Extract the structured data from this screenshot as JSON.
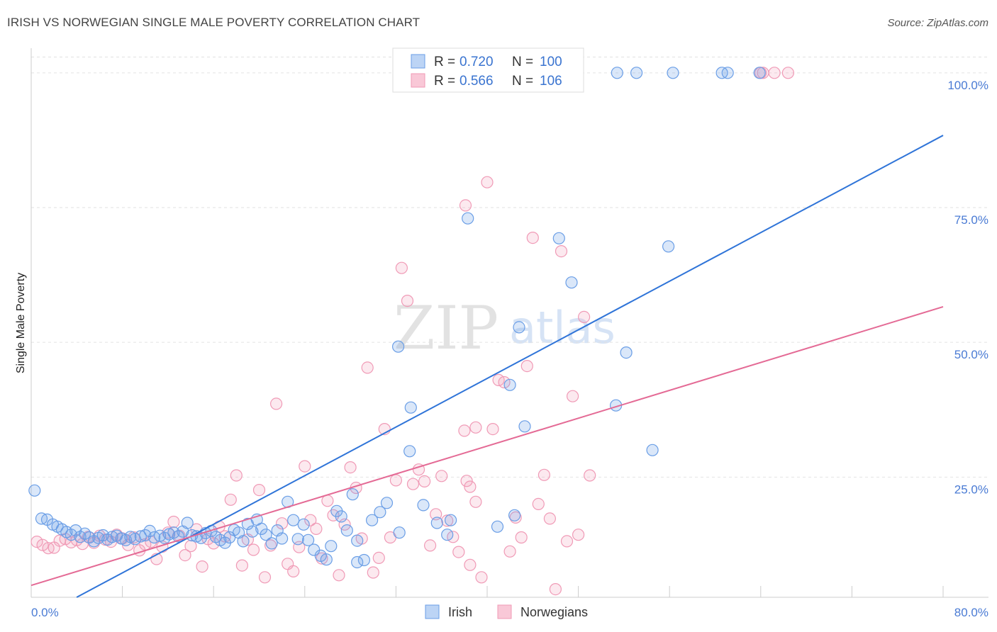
{
  "chart_data": {
    "type": "scatter",
    "title": "IRISH VS NORWEGIAN SINGLE MALE POVERTY CORRELATION CHART",
    "source": "Source: ZipAtlas.com",
    "xlabel": "",
    "ylabel": "Single Male Poverty",
    "xlim": [
      0,
      80
    ],
    "ylim": [
      0,
      103
    ],
    "x_tick_labels": [
      "0.0%",
      "80.0%"
    ],
    "y_ticks": [
      25,
      50,
      75,
      100
    ],
    "y_tick_labels": [
      "25.0%",
      "50.0%",
      "75.0%",
      "100.0%"
    ],
    "grid": true,
    "legend_position": "top-center",
    "watermark": {
      "zip": "ZIP",
      "atlas": "atlas"
    },
    "colors": {
      "irish": "#6a9ee6",
      "irish_line": "#2f74d8",
      "norwegians": "#f09ab6",
      "norwegians_line": "#e46a95"
    },
    "stats": [
      {
        "r_label": "R =",
        "r": "0.720",
        "n_label": "N =",
        "n": "100"
      },
      {
        "r_label": "R =",
        "r": "0.566",
        "n_label": "N =",
        "n": "106"
      }
    ],
    "series": [
      {
        "name": "Irish",
        "trend": {
          "x": [
            0,
            80
          ],
          "y": [
            -1.8,
            88.4
          ]
        },
        "points": [
          [
            0.3,
            22.5
          ],
          [
            0.9,
            17.3
          ],
          [
            1.4,
            17.1
          ],
          [
            1.9,
            16.2
          ],
          [
            2.3,
            15.8
          ],
          [
            2.7,
            15.3
          ],
          [
            3.1,
            14.8
          ],
          [
            3.5,
            14.3
          ],
          [
            3.9,
            15.1
          ],
          [
            4.3,
            13.9
          ],
          [
            4.7,
            14.5
          ],
          [
            5.1,
            13.8
          ],
          [
            5.5,
            13.1
          ],
          [
            5.9,
            13.7
          ],
          [
            6.3,
            14.2
          ],
          [
            6.7,
            13.4
          ],
          [
            7.1,
            13.9
          ],
          [
            7.5,
            14.1
          ],
          [
            7.9,
            13.6
          ],
          [
            8.3,
            13.3
          ],
          [
            8.7,
            13.9
          ],
          [
            9.1,
            13.5
          ],
          [
            9.6,
            14.0
          ],
          [
            10.0,
            14.2
          ],
          [
            10.4,
            15.0
          ],
          [
            10.8,
            13.8
          ],
          [
            11.3,
            14.1
          ],
          [
            11.7,
            13.7
          ],
          [
            12.1,
            14.4
          ],
          [
            12.5,
            14.7
          ],
          [
            12.9,
            14.0
          ],
          [
            13.3,
            14.9
          ],
          [
            13.7,
            16.5
          ],
          [
            14.1,
            14.2
          ],
          [
            14.5,
            14.0
          ],
          [
            14.9,
            13.7
          ],
          [
            15.3,
            14.6
          ],
          [
            15.8,
            15.0
          ],
          [
            16.2,
            13.9
          ],
          [
            16.6,
            13.3
          ],
          [
            17.0,
            12.8
          ],
          [
            17.4,
            13.8
          ],
          [
            17.8,
            15.2
          ],
          [
            18.2,
            14.7
          ],
          [
            18.6,
            13.1
          ],
          [
            19.0,
            16.3
          ],
          [
            19.4,
            14.9
          ],
          [
            19.8,
            17.1
          ],
          [
            20.2,
            15.4
          ],
          [
            20.6,
            14.3
          ],
          [
            21.1,
            12.7
          ],
          [
            21.6,
            15.1
          ],
          [
            22.0,
            13.6
          ],
          [
            22.5,
            20.4
          ],
          [
            23.0,
            17.0
          ],
          [
            23.4,
            13.5
          ],
          [
            23.9,
            16.2
          ],
          [
            24.3,
            13.3
          ],
          [
            24.8,
            11.5
          ],
          [
            25.4,
            10.4
          ],
          [
            25.9,
            9.7
          ],
          [
            26.3,
            12.2
          ],
          [
            26.8,
            18.7
          ],
          [
            27.2,
            17.7
          ],
          [
            27.7,
            15.1
          ],
          [
            28.2,
            21.8
          ],
          [
            28.6,
            9.2
          ],
          [
            29.2,
            9.6
          ],
          [
            29.9,
            17.0
          ],
          [
            30.6,
            18.5
          ],
          [
            31.2,
            20.2
          ],
          [
            32.3,
            14.7
          ],
          [
            34.4,
            19.8
          ],
          [
            35.6,
            16.5
          ],
          [
            36.5,
            14.3
          ],
          [
            36.8,
            17.0
          ],
          [
            32.2,
            49.2
          ],
          [
            33.2,
            29.8
          ],
          [
            33.3,
            37.9
          ],
          [
            28.6,
            13.2
          ],
          [
            38.3,
            73.0
          ],
          [
            42.8,
            52.8
          ],
          [
            42.0,
            42.1
          ],
          [
            42.4,
            17.9
          ],
          [
            43.3,
            34.4
          ],
          [
            46.3,
            69.3
          ],
          [
            47.4,
            61.1
          ],
          [
            40.9,
            15.8
          ],
          [
            51.3,
            38.3
          ],
          [
            52.2,
            48.1
          ],
          [
            54.5,
            30.0
          ],
          [
            55.9,
            67.8
          ],
          [
            47.2,
            99.6
          ],
          [
            47.6,
            100.0
          ],
          [
            51.4,
            100.0
          ],
          [
            53.1,
            100.0
          ],
          [
            56.3,
            100.0
          ],
          [
            60.6,
            100.0
          ],
          [
            61.1,
            100.0
          ],
          [
            63.9,
            100.0
          ]
        ]
      },
      {
        "name": "Norwegians",
        "trend": {
          "x": [
            0,
            80
          ],
          "y": [
            4.9,
            56.6
          ]
        },
        "points": [
          [
            0.5,
            13.0
          ],
          [
            1.0,
            12.4
          ],
          [
            1.5,
            11.8
          ],
          [
            2.0,
            11.9
          ],
          [
            2.5,
            13.2
          ],
          [
            3.0,
            13.5
          ],
          [
            3.5,
            12.9
          ],
          [
            4.0,
            13.3
          ],
          [
            4.5,
            12.6
          ],
          [
            5.0,
            13.9
          ],
          [
            5.5,
            12.8
          ],
          [
            6.0,
            14.1
          ],
          [
            6.5,
            13.4
          ],
          [
            7.0,
            13.0
          ],
          [
            7.5,
            14.3
          ],
          [
            8.0,
            13.6
          ],
          [
            8.5,
            12.4
          ],
          [
            9.0,
            13.8
          ],
          [
            9.5,
            11.4
          ],
          [
            10.0,
            12.5
          ],
          [
            10.5,
            13.0
          ],
          [
            11.0,
            9.8
          ],
          [
            11.5,
            12.1
          ],
          [
            12.0,
            14.7
          ],
          [
            12.5,
            16.7
          ],
          [
            13.0,
            14.1
          ],
          [
            13.5,
            10.5
          ],
          [
            14.0,
            12.2
          ],
          [
            14.5,
            15.3
          ],
          [
            15.0,
            8.4
          ],
          [
            15.5,
            13.5
          ],
          [
            16.0,
            12.7
          ],
          [
            16.5,
            15.8
          ],
          [
            17.0,
            14.0
          ],
          [
            17.5,
            20.8
          ],
          [
            18.0,
            25.3
          ],
          [
            18.5,
            8.6
          ],
          [
            19.0,
            13.4
          ],
          [
            19.5,
            11.5
          ],
          [
            20.0,
            22.6
          ],
          [
            20.5,
            6.4
          ],
          [
            21.0,
            12.3
          ],
          [
            21.5,
            38.6
          ],
          [
            22.0,
            16.4
          ],
          [
            22.5,
            8.9
          ],
          [
            23.0,
            7.5
          ],
          [
            23.5,
            12.0
          ],
          [
            24.0,
            27.0
          ],
          [
            24.5,
            17.0
          ],
          [
            25.0,
            15.4
          ],
          [
            25.5,
            9.9
          ],
          [
            26.0,
            20.6
          ],
          [
            26.5,
            17.9
          ],
          [
            27.0,
            6.8
          ],
          [
            27.5,
            16.2
          ],
          [
            28.0,
            26.8
          ],
          [
            28.5,
            23.0
          ],
          [
            29.0,
            13.6
          ],
          [
            29.5,
            45.3
          ],
          [
            30.0,
            7.3
          ],
          [
            30.5,
            10.0
          ],
          [
            31.0,
            33.9
          ],
          [
            31.5,
            13.8
          ],
          [
            32.0,
            24.4
          ],
          [
            32.5,
            63.8
          ],
          [
            33.0,
            57.7
          ],
          [
            33.5,
            23.7
          ],
          [
            34.0,
            26.4
          ],
          [
            34.5,
            24.2
          ],
          [
            35.0,
            12.3
          ],
          [
            35.5,
            18.1
          ],
          [
            36.0,
            25.2
          ],
          [
            36.5,
            16.9
          ],
          [
            37.0,
            13.9
          ],
          [
            37.5,
            11.1
          ],
          [
            38.0,
            33.6
          ],
          [
            38.5,
            8.7
          ],
          [
            39.0,
            20.4
          ],
          [
            39.5,
            6.4
          ],
          [
            40.0,
            79.7
          ],
          [
            40.5,
            33.9
          ],
          [
            41.0,
            43.0
          ],
          [
            41.5,
            42.6
          ],
          [
            42.0,
            11.2
          ],
          [
            42.5,
            17.5
          ],
          [
            43.0,
            13.8
          ],
          [
            43.5,
            45.6
          ],
          [
            44.0,
            69.4
          ],
          [
            44.5,
            20.0
          ],
          [
            45.0,
            25.4
          ],
          [
            45.5,
            17.3
          ],
          [
            46.0,
            4.2
          ],
          [
            46.5,
            66.9
          ],
          [
            47.0,
            13.1
          ],
          [
            47.5,
            40.0
          ],
          [
            48.0,
            14.3
          ],
          [
            48.5,
            54.7
          ],
          [
            49.0,
            25.3
          ],
          [
            38.1,
            75.4
          ],
          [
            39.0,
            34.2
          ],
          [
            38.2,
            24.3
          ],
          [
            38.5,
            23.2
          ],
          [
            64.0,
            100.0
          ],
          [
            64.2,
            100.0
          ],
          [
            65.2,
            100.0
          ],
          [
            66.4,
            100.0
          ]
        ]
      }
    ]
  }
}
